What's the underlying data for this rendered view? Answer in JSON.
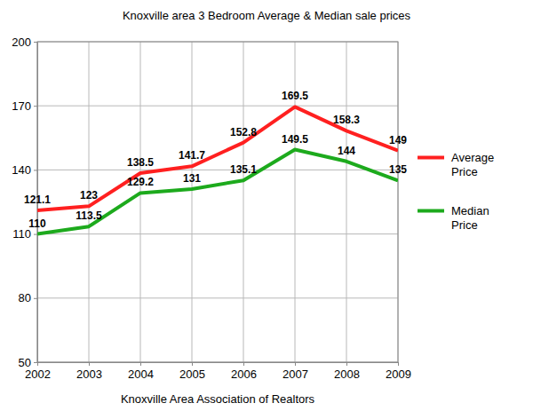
{
  "chart_data": {
    "type": "line",
    "title": "Knoxville area 3 Bedroom Average & Median sale prices",
    "x_label": "Knoxville Area Association of Realtors",
    "x": [
      2002,
      2003,
      2004,
      2005,
      2006,
      2007,
      2008,
      2009
    ],
    "xlim": [
      2002,
      2009
    ],
    "xticks": [
      2002,
      2003,
      2004,
      2005,
      2006,
      2007,
      2008,
      2009
    ],
    "ylim": [
      50,
      200
    ],
    "yticks": [
      50,
      80,
      110,
      140,
      170,
      200
    ],
    "grid": true,
    "legend": "right",
    "data_labels": true,
    "series": [
      {
        "name": "Average Price",
        "color": "#ff2020",
        "values": [
          121.1,
          123,
          138.5,
          141.7,
          152.8,
          169.5,
          158.3,
          149
        ]
      },
      {
        "name": "Median Price",
        "color": "#1daa1d",
        "values": [
          110,
          113.5,
          129.2,
          131,
          135.1,
          149.5,
          144,
          135
        ]
      }
    ]
  }
}
